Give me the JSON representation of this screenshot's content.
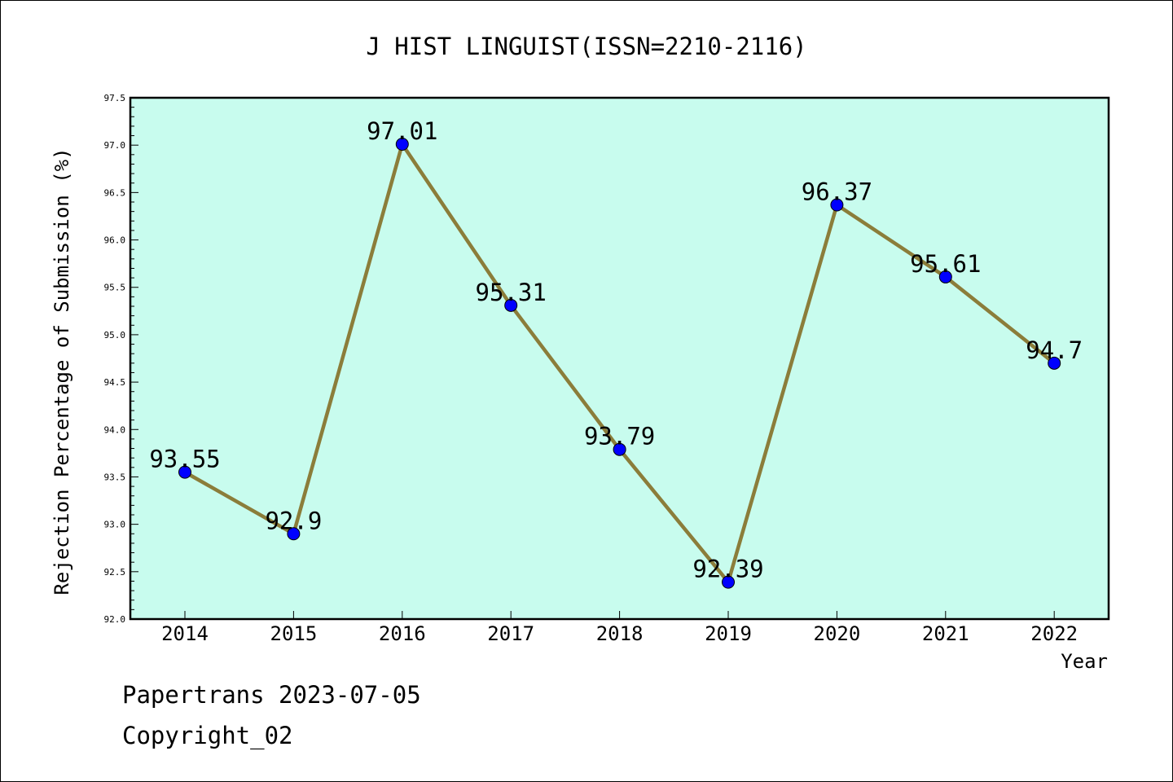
{
  "chart_data": {
    "type": "line",
    "title": "J HIST LINGUIST(ISSN=2210-2116)",
    "xlabel": "Year",
    "ylabel": "Rejection Percentage of Submission (%)",
    "categories": [
      "2014",
      "2015",
      "2016",
      "2017",
      "2018",
      "2019",
      "2020",
      "2021",
      "2022"
    ],
    "values": [
      93.55,
      92.9,
      97.01,
      95.31,
      93.79,
      92.39,
      96.37,
      95.61,
      94.7
    ],
    "data_labels": [
      "93.55",
      "92.9",
      "97.01",
      "95.31",
      "93.79",
      "92.39",
      "96.37",
      "95.61",
      "94.7"
    ],
    "ylim": [
      92.0,
      97.5
    ],
    "yticks": [
      "92.0",
      "92.5",
      "93.0",
      "93.5",
      "94.0",
      "94.5",
      "95.0",
      "95.5",
      "96.0",
      "96.5",
      "97.0",
      "97.5"
    ],
    "grid": false,
    "colors": {
      "plot_background": "#c8fcee",
      "line": "#8b7d3a",
      "marker": "#0000ff"
    }
  },
  "footer": {
    "credit": "Papertrans 2023-07-05",
    "copyright": "Copyright_02"
  }
}
